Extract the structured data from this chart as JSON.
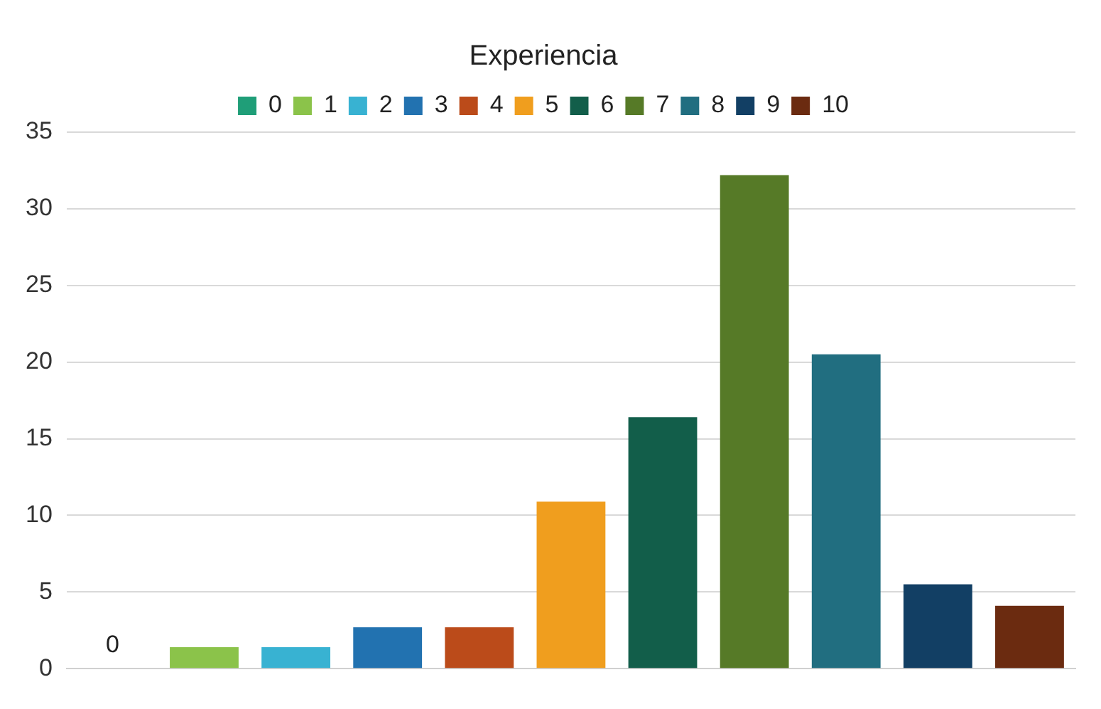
{
  "chart_data": {
    "type": "bar",
    "title": "Experiencia",
    "categories": [
      null,
      null,
      null,
      null,
      null,
      null,
      null,
      null,
      null,
      null,
      null
    ],
    "series": [
      {
        "name": "0",
        "color": "#1f9e78",
        "values": [
          0,
          null,
          null,
          null,
          null,
          null,
          null,
          null,
          null,
          null,
          null
        ],
        "value_labels": [
          "0",
          null,
          null,
          null,
          null,
          null,
          null,
          null,
          null,
          null,
          null
        ]
      },
      {
        "name": "1",
        "color": "#8bc34a",
        "values": [
          null,
          1.4,
          null,
          null,
          null,
          null,
          null,
          null,
          null,
          null,
          null
        ]
      },
      {
        "name": "2",
        "color": "#38b2d2",
        "values": [
          null,
          null,
          1.4,
          null,
          null,
          null,
          null,
          null,
          null,
          null,
          null
        ]
      },
      {
        "name": "3",
        "color": "#2272b0",
        "values": [
          null,
          null,
          null,
          2.7,
          null,
          null,
          null,
          null,
          null,
          null,
          null
        ]
      },
      {
        "name": "4",
        "color": "#bb4b1a",
        "values": [
          null,
          null,
          null,
          null,
          2.7,
          null,
          null,
          null,
          null,
          null,
          null
        ]
      },
      {
        "name": "5",
        "color": "#f09e1e",
        "values": [
          null,
          null,
          null,
          null,
          null,
          10.9,
          null,
          null,
          null,
          null,
          null
        ]
      },
      {
        "name": "6",
        "color": "#125e4a",
        "values": [
          null,
          null,
          null,
          null,
          null,
          null,
          16.4,
          null,
          null,
          null,
          null
        ]
      },
      {
        "name": "7",
        "color": "#567a27",
        "values": [
          null,
          null,
          null,
          null,
          null,
          null,
          null,
          32.2,
          null,
          null,
          null
        ]
      },
      {
        "name": "8",
        "color": "#216e80",
        "values": [
          null,
          null,
          null,
          null,
          null,
          null,
          null,
          null,
          20.5,
          null,
          null
        ]
      },
      {
        "name": "9",
        "color": "#123f64",
        "values": [
          null,
          null,
          null,
          null,
          null,
          null,
          null,
          null,
          null,
          5.5,
          null
        ]
      },
      {
        "name": "10",
        "color": "#6b2b10",
        "values": [
          null,
          null,
          null,
          null,
          null,
          null,
          null,
          null,
          null,
          null,
          4.1
        ]
      }
    ],
    "ylim": [
      0,
      35
    ],
    "yticks": [
      0,
      5,
      10,
      15,
      20,
      25,
      30,
      35
    ],
    "grid": "y",
    "legend": "top"
  }
}
